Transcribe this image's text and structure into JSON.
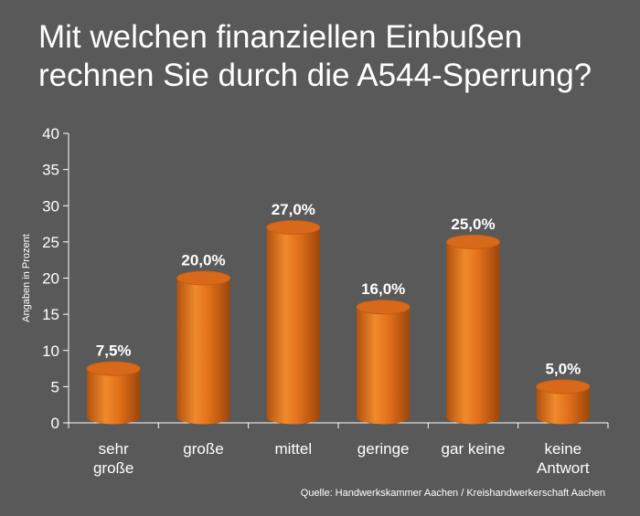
{
  "chart_data": {
    "type": "bar",
    "title": "Mit welchen finanziellen Einbußen\nrechnen Sie durch die A544-Sperrung?",
    "ylabel": "Angaben in Prozent",
    "ylim": [
      0,
      40
    ],
    "yticks": [
      0,
      5,
      10,
      15,
      20,
      25,
      30,
      35,
      40
    ],
    "categories": [
      "sehr\ngroße",
      "große",
      "mittel",
      "geringe",
      "gar keine",
      "keine\nAntwort"
    ],
    "values": [
      7.5,
      20.0,
      27.0,
      16.0,
      25.0,
      5.0
    ],
    "data_labels": [
      "7,5%",
      "20,0%",
      "27,0%",
      "16,0%",
      "25,0%",
      "5,0%"
    ],
    "grid": false,
    "bar_color": "#e8731c"
  },
  "source": "Quelle: Handwerkskammer Aachen / Kreishandwerkerschaft Aachen"
}
